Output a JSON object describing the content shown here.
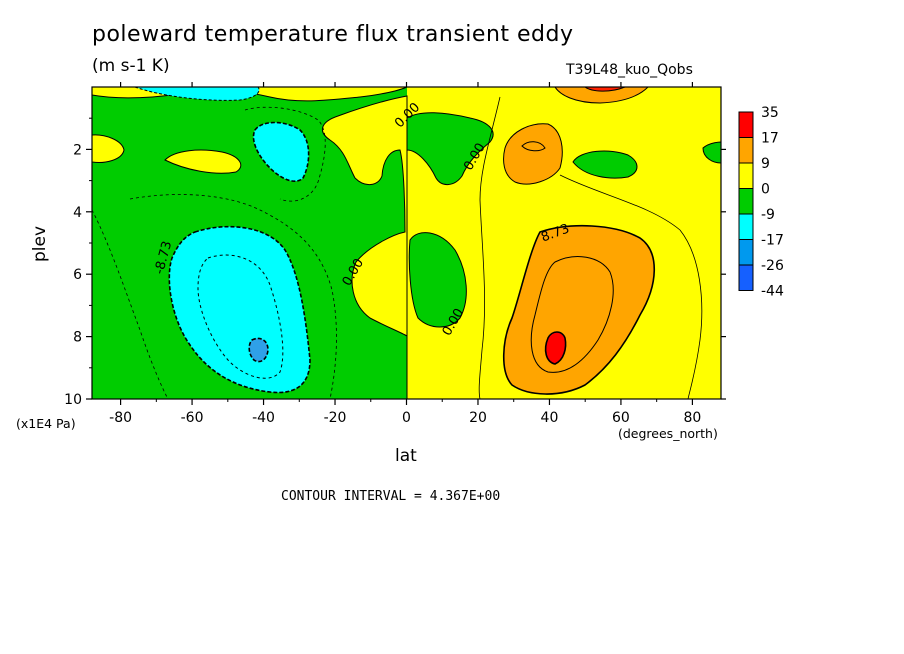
{
  "chart_data": {
    "type": "heatmap",
    "title": "poleward temperature flux transient eddy",
    "units": "(m s-1 K)",
    "run_label": "T39L48_kuo_Qobs",
    "xlabel": "lat",
    "xlabel_units": "(degrees_north)",
    "ylabel": "plev",
    "ylabel_units": "(x1E4 Pa)",
    "xlim": [
      -88,
      88
    ],
    "ylim": [
      10,
      0
    ],
    "x_ticks": [
      -80,
      -60,
      -40,
      -20,
      0,
      20,
      40,
      60,
      80
    ],
    "y_ticks": [
      2,
      4,
      6,
      8,
      10
    ],
    "contour_interval_text": "CONTOUR INTERVAL = 4.367E+00",
    "contour_labels": [
      {
        "text": "0.00",
        "x": -14,
        "y": 6.0
      },
      {
        "text": "0.00",
        "x": 1,
        "y": 1.0
      },
      {
        "text": "0.00",
        "x": 20,
        "y": 2.3
      },
      {
        "text": "0.00",
        "x": 14,
        "y": 7.6
      },
      {
        "text": "8.73",
        "x": 42,
        "y": 4.8
      },
      {
        "text": "-8.73",
        "x": -67,
        "y": 5.5
      }
    ],
    "legend": {
      "placement": "right",
      "levels": [
        "35",
        "17",
        "9",
        "0",
        "-9",
        "-17",
        "-26",
        "-44"
      ],
      "colors": [
        "#ff0000",
        "#ffa500",
        "#ffff00",
        "#00cc00",
        "#00ffff",
        "#0099ee",
        "#1560ff"
      ]
    },
    "regions": [
      {
        "name": "sh-min-core",
        "value_range": "-26 to -17",
        "center": [
          -41,
          8.4
        ]
      },
      {
        "name": "nh-max-core",
        "value_range": "17 to 35",
        "center": [
          41,
          8.4
        ]
      },
      {
        "name": "sh-upper-min",
        "value_range": "-17 to -9",
        "center": [
          -37,
          2.0
        ]
      },
      {
        "name": "nh-upper-max",
        "value_range": "9 to 17",
        "center": [
          35,
          2.0
        ]
      }
    ]
  }
}
